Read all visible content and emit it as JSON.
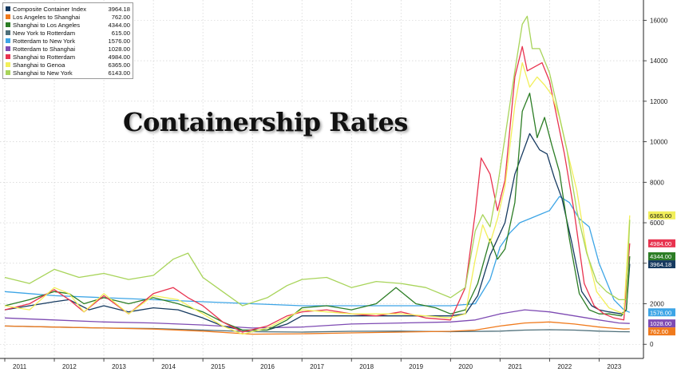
{
  "chart_data": {
    "type": "line",
    "title": "Containership Rates",
    "x_tick_labels": [
      "2011",
      "2012",
      "2013",
      "2014",
      "2015",
      "2016",
      "2017",
      "2018",
      "2019",
      "2020",
      "2021",
      "2022",
      "2023"
    ],
    "xlim": [
      2011,
      2023.8
    ],
    "y_tick_labels": [
      "0",
      "2000",
      "4000",
      "6000",
      "8000",
      "10000",
      "12000",
      "14000",
      "16000"
    ],
    "ylim": [
      -700,
      17000
    ],
    "y_axis_side": "right",
    "grid": true,
    "legend_position": "top-left",
    "end_value_labels": [
      {
        "text": "6365.00",
        "color": "#f2ef5a",
        "y": 6365
      },
      {
        "text": "4984.00",
        "color": "#e8334f",
        "y": 4984
      },
      {
        "text": "4344.00",
        "color": "#2c7d25",
        "y": 4344
      },
      {
        "text": "3964.18",
        "color": "#163a60",
        "y": 3964.18
      },
      {
        "text": "1576.00",
        "color": "#3da5e6",
        "y": 1576
      },
      {
        "text": "1028.00",
        "color": "#7e4bb3",
        "y": 1028
      },
      {
        "text": "762.00",
        "color": "#f07a1c",
        "y": 762
      }
    ],
    "series": [
      {
        "name": "Composite Container Index",
        "last": "3964.18",
        "color": "#163a60",
        "x": [
          2011.0,
          2011.5,
          2012.0,
          2012.3,
          2012.7,
          2013.0,
          2013.5,
          2014.0,
          2014.5,
          2015.0,
          2015.4,
          2015.8,
          2016.3,
          2016.7,
          2017.0,
          2017.5,
          2018.0,
          2018.5,
          2019.0,
          2019.5,
          2020.0,
          2020.3,
          2020.55,
          2020.8,
          2020.95,
          2021.1,
          2021.3,
          2021.45,
          2021.6,
          2021.8,
          2021.95,
          2022.1,
          2022.25,
          2022.45,
          2022.65,
          2022.85,
          2023.0,
          2023.2,
          2023.45,
          2023.55,
          2023.62
        ],
        "y": [
          1700,
          1900,
          2100,
          2200,
          1700,
          1900,
          1600,
          1800,
          1700,
          1300,
          900,
          700,
          700,
          1000,
          1400,
          1400,
          1400,
          1400,
          1400,
          1400,
          1400,
          1500,
          2400,
          4400,
          5200,
          6000,
          8400,
          9400,
          10400,
          9600,
          9400,
          8200,
          7200,
          5000,
          2600,
          1900,
          1700,
          1600,
          1500,
          1700,
          3964
        ]
      },
      {
        "name": "Los Angeles to Shanghai",
        "last": "762.00",
        "color": "#f07a1c",
        "x": [
          2011.0,
          2012.0,
          2013.0,
          2014.0,
          2015.0,
          2016.0,
          2017.0,
          2018.0,
          2019.0,
          2020.0,
          2020.5,
          2021.0,
          2021.5,
          2022.0,
          2022.5,
          2023.0,
          2023.5,
          2023.62
        ],
        "y": [
          900,
          850,
          800,
          750,
          650,
          500,
          520,
          560,
          600,
          640,
          700,
          900,
          1050,
          1100,
          1000,
          850,
          750,
          762
        ]
      },
      {
        "name": "Shanghai to Los Angeles",
        "last": "4344.00",
        "color": "#2c7d25",
        "x": [
          2011.0,
          2011.5,
          2012.0,
          2012.3,
          2012.6,
          2013.0,
          2013.5,
          2014.0,
          2014.5,
          2015.0,
          2015.4,
          2015.8,
          2016.3,
          2016.7,
          2017.0,
          2017.5,
          2018.0,
          2018.5,
          2018.9,
          2019.3,
          2019.7,
          2020.0,
          2020.3,
          2020.55,
          2020.8,
          2020.95,
          2021.1,
          2021.3,
          2021.45,
          2021.6,
          2021.75,
          2021.9,
          2022.05,
          2022.2,
          2022.4,
          2022.6,
          2022.8,
          2023.0,
          2023.2,
          2023.45,
          2023.55,
          2023.62
        ],
        "y": [
          1900,
          2200,
          2600,
          2500,
          2000,
          2300,
          2000,
          2300,
          2000,
          1600,
          1100,
          700,
          700,
          1200,
          1800,
          1900,
          1700,
          2000,
          2800,
          2000,
          1800,
          1500,
          1700,
          3000,
          5200,
          4200,
          4700,
          7000,
          11500,
          12400,
          10200,
          11200,
          9800,
          8500,
          5200,
          2500,
          1700,
          1500,
          1500,
          1400,
          1700,
          4344
        ]
      },
      {
        "name": "New York to Rotterdam",
        "last": "615.00",
        "color": "#4e6f7a",
        "x": [
          2011.0,
          2012.0,
          2013.0,
          2014.0,
          2015.0,
          2016.0,
          2017.0,
          2018.0,
          2019.0,
          2020.0,
          2021.0,
          2021.5,
          2022.0,
          2022.5,
          2023.0,
          2023.4,
          2023.62
        ],
        "y": [
          900,
          850,
          800,
          780,
          700,
          620,
          600,
          640,
          650,
          620,
          650,
          700,
          720,
          700,
          650,
          620,
          615
        ]
      },
      {
        "name": "Rotterdam to New York",
        "last": "1576.00",
        "color": "#3da5e6",
        "x": [
          2011.0,
          2011.5,
          2012.0,
          2013.0,
          2014.0,
          2015.0,
          2016.0,
          2017.0,
          2018.0,
          2019.0,
          2020.0,
          2020.5,
          2020.8,
          2021.0,
          2021.2,
          2021.4,
          2021.6,
          2021.8,
          2022.0,
          2022.2,
          2022.4,
          2022.6,
          2022.8,
          2023.0,
          2023.3,
          2023.5,
          2023.62
        ],
        "y": [
          2600,
          2500,
          2400,
          2300,
          2200,
          2100,
          2000,
          1900,
          1900,
          1900,
          1900,
          2000,
          3200,
          4800,
          5500,
          6000,
          6200,
          6400,
          6600,
          7300,
          7000,
          6200,
          5800,
          4000,
          2200,
          1700,
          1576
        ]
      },
      {
        "name": "Rotterdam to Shanghai",
        "last": "1028.00",
        "color": "#7e4bb3",
        "x": [
          2011.0,
          2012.0,
          2013.0,
          2014.0,
          2015.0,
          2016.0,
          2017.0,
          2018.0,
          2019.0,
          2020.0,
          2020.5,
          2021.0,
          2021.5,
          2022.0,
          2022.5,
          2023.0,
          2023.4,
          2023.62
        ],
        "y": [
          1300,
          1200,
          1100,
          1050,
          950,
          800,
          850,
          1000,
          1050,
          1100,
          1200,
          1500,
          1700,
          1600,
          1400,
          1200,
          1050,
          1028
        ]
      },
      {
        "name": "Shanghai to Rotterdam",
        "last": "4984.00",
        "color": "#e8334f",
        "x": [
          2011.0,
          2011.5,
          2012.0,
          2012.3,
          2012.6,
          2013.0,
          2013.5,
          2014.0,
          2014.4,
          2014.7,
          2015.0,
          2015.4,
          2015.8,
          2016.3,
          2016.7,
          2017.0,
          2017.5,
          2018.0,
          2018.5,
          2019.0,
          2019.5,
          2020.0,
          2020.3,
          2020.5,
          2020.62,
          2020.8,
          2020.95,
          2021.1,
          2021.3,
          2021.45,
          2021.55,
          2021.7,
          2021.85,
          2022.0,
          2022.15,
          2022.3,
          2022.5,
          2022.7,
          2022.9,
          2023.1,
          2023.3,
          2023.5,
          2023.62
        ],
        "y": [
          1700,
          2000,
          2700,
          2200,
          1600,
          2400,
          1500,
          2500,
          2800,
          2300,
          1900,
          1100,
          600,
          900,
          1400,
          1600,
          1700,
          1500,
          1400,
          1600,
          1300,
          1200,
          2800,
          6500,
          9200,
          8400,
          6600,
          8100,
          13200,
          14700,
          13500,
          13700,
          13900,
          13000,
          11200,
          9400,
          6500,
          3000,
          1900,
          1500,
          1300,
          1200,
          4984
        ]
      },
      {
        "name": "Shanghai to Genoa",
        "last": "6365.00",
        "color": "#f2ef5a",
        "x": [
          2011.0,
          2011.5,
          2012.0,
          2012.3,
          2012.6,
          2013.0,
          2013.5,
          2014.0,
          2014.5,
          2015.0,
          2015.4,
          2015.8,
          2016.3,
          2016.7,
          2017.0,
          2017.5,
          2018.0,
          2018.5,
          2019.0,
          2019.5,
          2020.0,
          2020.3,
          2020.5,
          2020.65,
          2020.8,
          2020.95,
          2021.1,
          2021.3,
          2021.45,
          2021.6,
          2021.75,
          2021.9,
          2022.05,
          2022.2,
          2022.35,
          2022.55,
          2022.75,
          2022.95,
          2023.2,
          2023.5,
          2023.62
        ],
        "y": [
          1900,
          1700,
          2800,
          2500,
          1600,
          2500,
          1500,
          2400,
          2200,
          1500,
          900,
          500,
          800,
          1300,
          1700,
          1600,
          1500,
          1500,
          1500,
          1400,
          1300,
          1500,
          4200,
          5900,
          5000,
          6200,
          7800,
          11800,
          13900,
          12700,
          13200,
          12800,
          12300,
          11200,
          9600,
          7600,
          4600,
          2600,
          1800,
          1500,
          6365
        ]
      },
      {
        "name": "Shanghai to New York",
        "last": "6143.00",
        "color": "#a8d45a",
        "x": [
          2011.0,
          2011.5,
          2012.0,
          2012.5,
          2013.0,
          2013.5,
          2014.0,
          2014.4,
          2014.7,
          2015.0,
          2015.4,
          2015.8,
          2016.3,
          2016.7,
          2017.0,
          2017.5,
          2018.0,
          2018.5,
          2019.0,
          2019.5,
          2020.0,
          2020.3,
          2020.5,
          2020.65,
          2020.8,
          2020.95,
          2021.1,
          2021.3,
          2021.45,
          2021.55,
          2021.65,
          2021.8,
          2022.0,
          2022.15,
          2022.35,
          2022.55,
          2022.75,
          2022.95,
          2023.15,
          2023.4,
          2023.55,
          2023.62
        ],
        "y": [
          3300,
          3000,
          3700,
          3300,
          3500,
          3200,
          3400,
          4200,
          4500,
          3300,
          2600,
          1900,
          2300,
          2900,
          3200,
          3300,
          2800,
          3100,
          3000,
          2800,
          2300,
          2800,
          5600,
          6400,
          5800,
          7800,
          10200,
          13500,
          15800,
          16200,
          14600,
          14600,
          13400,
          11800,
          9600,
          6600,
          4500,
          3100,
          2600,
          2200,
          2200,
          6143
        ]
      }
    ]
  }
}
